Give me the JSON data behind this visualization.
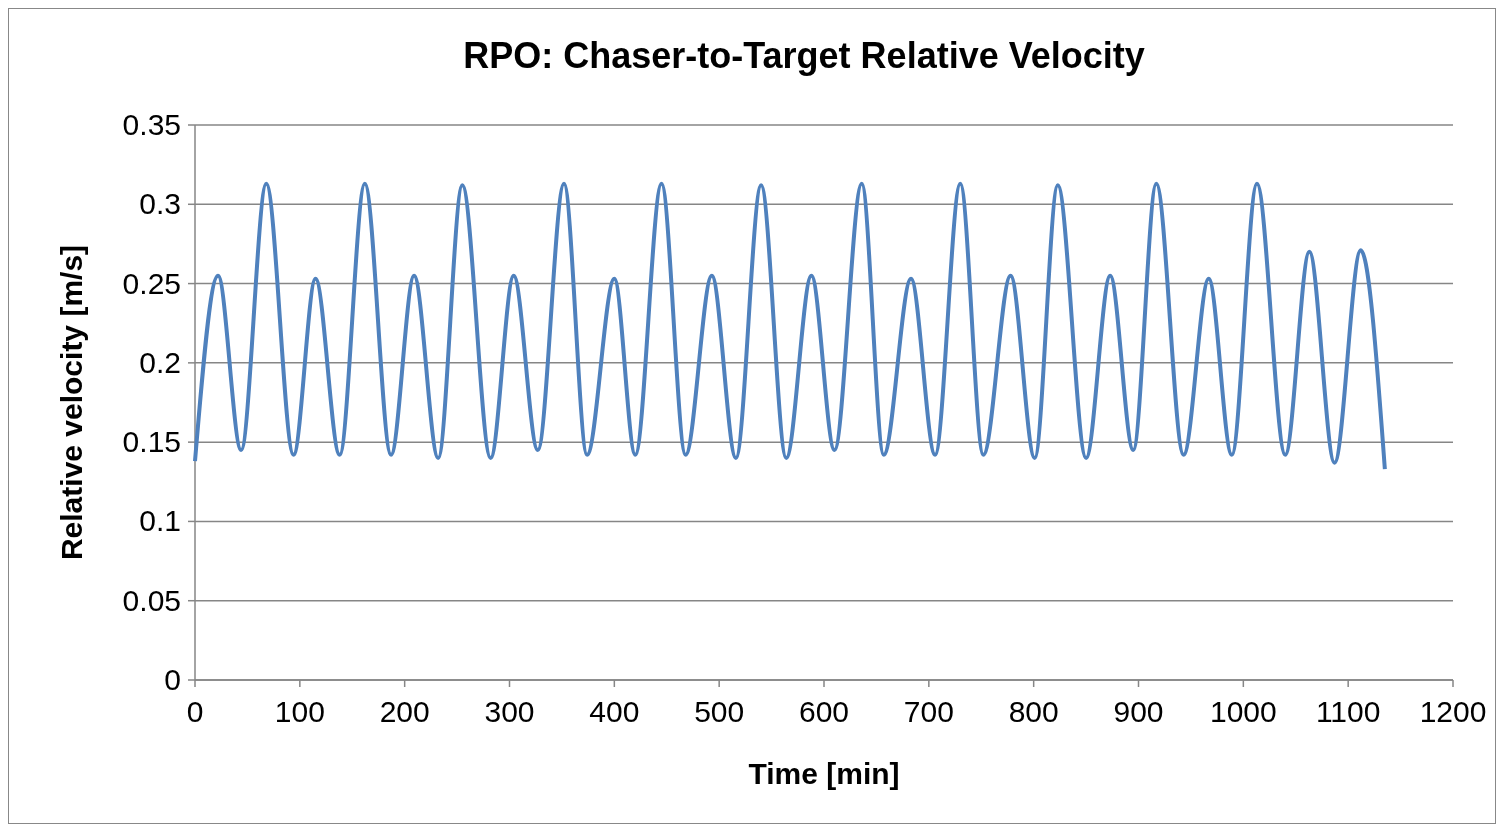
{
  "chart_data": {
    "type": "line",
    "title": "RPO: Chaser-to-Target Relative Velocity",
    "xlabel": "Time [min]",
    "ylabel": "Relative velocity [m/s]",
    "x": [
      0,
      22,
      44,
      68,
      94,
      115,
      138,
      162,
      187,
      209,
      232,
      255,
      282,
      304,
      327,
      352,
      374,
      400,
      420,
      445,
      468,
      493,
      516,
      540,
      564,
      588,
      610,
      636,
      657,
      683,
      706,
      730,
      752,
      778,
      801,
      823,
      850,
      873,
      895,
      917,
      943,
      967,
      989,
      1013,
      1040,
      1063,
      1087,
      1112,
      1135
    ],
    "series": [
      {
        "color": "#4f81bd",
        "values": [
          0.138,
          0.255,
          0.145,
          0.313,
          0.142,
          0.253,
          0.142,
          0.313,
          0.142,
          0.255,
          0.14,
          0.312,
          0.14,
          0.255,
          0.145,
          0.313,
          0.142,
          0.253,
          0.142,
          0.313,
          0.142,
          0.255,
          0.14,
          0.312,
          0.14,
          0.255,
          0.145,
          0.313,
          0.142,
          0.253,
          0.142,
          0.313,
          0.142,
          0.255,
          0.14,
          0.312,
          0.14,
          0.255,
          0.145,
          0.313,
          0.142,
          0.253,
          0.142,
          0.313,
          0.142,
          0.27,
          0.137,
          0.271,
          0.133
        ]
      }
    ],
    "xlim": [
      0,
      1200
    ],
    "xticks": [
      0,
      100,
      200,
      300,
      400,
      500,
      600,
      700,
      800,
      900,
      1000,
      1100,
      1200
    ],
    "ylim": [
      0,
      0.35
    ],
    "yticks": [
      0,
      0.05,
      0.1,
      0.15,
      0.2,
      0.25,
      0.3,
      0.35
    ],
    "grid": "y",
    "line_style": "solid"
  }
}
